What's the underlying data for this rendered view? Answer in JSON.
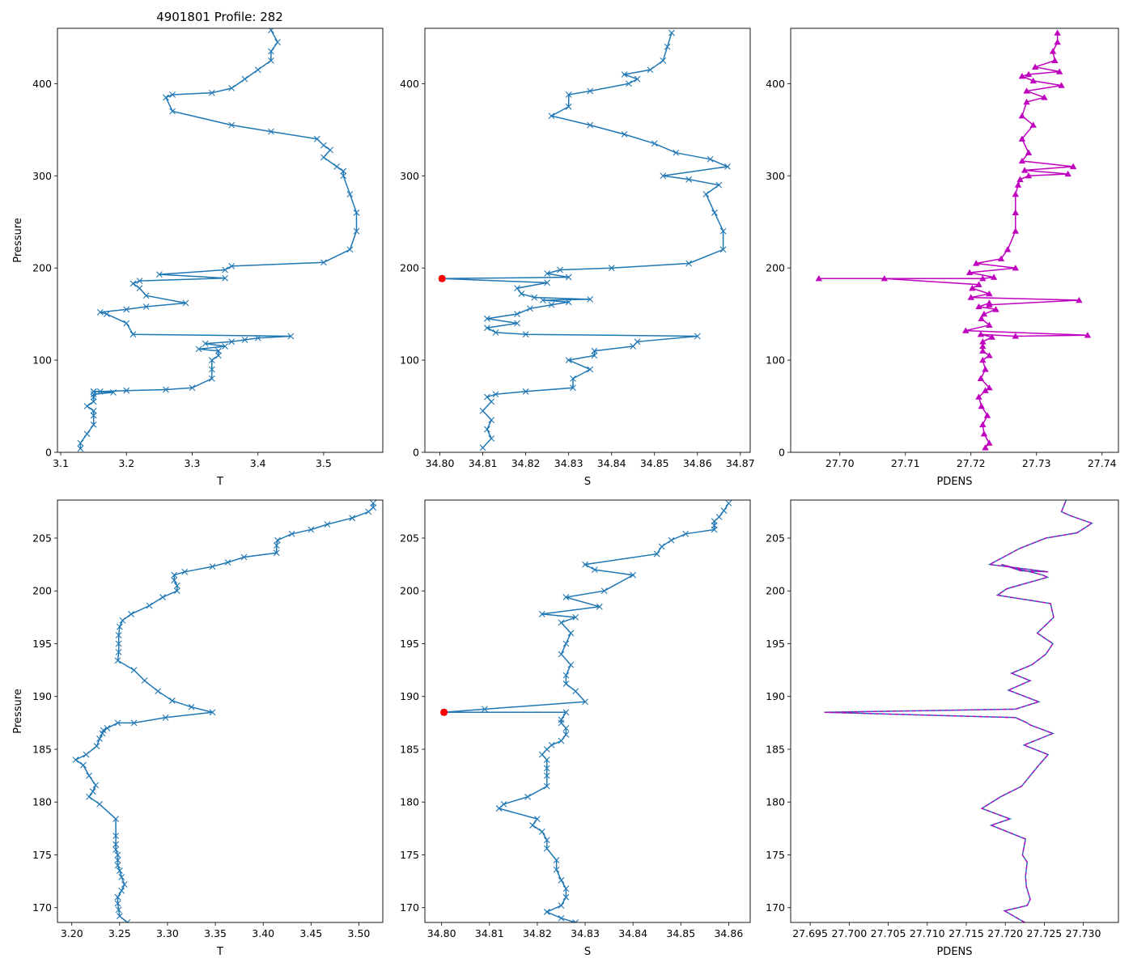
{
  "figure_title": "4901801 Profile: 282",
  "colors": {
    "line": "#1f77b4",
    "pdens": "#bf00bf",
    "flag": "#ff0000",
    "frame": "#000000"
  },
  "chart_data": [
    {
      "type": "line",
      "panel": "top-left",
      "title": "4901801 Profile: 282",
      "xlabel": "T",
      "ylabel": "Pressure",
      "marker": "x",
      "xlim": [
        3.095,
        3.59
      ],
      "ylim": [
        460,
        0
      ],
      "xticks": [
        3.1,
        3.2,
        3.3,
        3.4,
        3.5
      ],
      "xtick_labels": [
        "3.1",
        "3.2",
        "3.3",
        "3.4",
        "3.5"
      ],
      "yticks": [
        0,
        100,
        200,
        300,
        400
      ],
      "ytick_labels": [
        "0",
        "100",
        "200",
        "300",
        "400"
      ],
      "x": [
        3.13,
        3.13,
        3.14,
        3.15,
        3.15,
        3.15,
        3.14,
        3.15,
        3.15,
        3.15,
        3.18,
        3.15,
        3.15,
        3.16,
        3.2,
        3.26,
        3.3,
        3.33,
        3.33,
        3.33,
        3.34,
        3.34,
        3.31,
        3.35,
        3.32,
        3.36,
        3.38,
        3.4,
        3.45,
        3.21,
        3.2,
        3.17,
        3.16,
        3.2,
        3.23,
        3.29,
        3.23,
        3.22,
        3.21,
        3.22,
        3.35,
        3.25,
        3.35,
        3.36,
        3.5,
        3.54,
        3.55,
        3.55,
        3.54,
        3.53,
        3.53,
        3.52,
        3.5,
        3.51,
        3.5,
        3.49,
        3.42,
        3.36,
        3.27,
        3.26,
        3.27,
        3.33,
        3.36,
        3.38,
        3.4,
        3.42,
        3.42,
        3.43,
        3.42
      ],
      "y": [
        4,
        10,
        20,
        30,
        40,
        45,
        50,
        55,
        60,
        63,
        65,
        66,
        66,
        66,
        67,
        68,
        70,
        80,
        90,
        100,
        105,
        110,
        112,
        115,
        118,
        120,
        122,
        124,
        126,
        128,
        140,
        150,
        152,
        155,
        158,
        162,
        170,
        178,
        183,
        186,
        189,
        193,
        198,
        202,
        206,
        220,
        240,
        260,
        280,
        300,
        305,
        310,
        320,
        328,
        333,
        340,
        348,
        355,
        370,
        385,
        388,
        390,
        395,
        405,
        415,
        425,
        435,
        445,
        458
      ]
    },
    {
      "type": "line",
      "panel": "top-middle",
      "xlabel": "S",
      "marker": "x",
      "xlim": [
        34.7965,
        34.8723
      ],
      "ylim": [
        460,
        0
      ],
      "xticks": [
        34.8,
        34.81,
        34.82,
        34.83,
        34.84,
        34.85,
        34.86,
        34.87
      ],
      "xtick_labels": [
        "34.80",
        "34.81",
        "34.82",
        "34.83",
        "34.84",
        "34.85",
        "34.86",
        "34.87"
      ],
      "yticks": [
        0,
        100,
        200,
        300,
        400
      ],
      "ytick_labels": [
        "0",
        "100",
        "200",
        "300",
        "400"
      ],
      "x": [
        34.81,
        34.812,
        34.811,
        34.812,
        34.81,
        34.812,
        34.811,
        34.813,
        34.82,
        34.831,
        34.831,
        34.835,
        34.83,
        34.836,
        34.836,
        34.845,
        34.846,
        34.86,
        34.82,
        34.813,
        34.811,
        34.818,
        34.811,
        34.818,
        34.821,
        34.826,
        34.83,
        34.824,
        34.835,
        34.822,
        34.819,
        34.818,
        34.825,
        34.8005,
        34.83,
        34.825,
        34.828,
        34.84,
        34.858,
        34.866,
        34.866,
        34.864,
        34.862,
        34.865,
        34.858,
        34.852,
        34.867,
        34.863,
        34.855,
        34.85,
        34.843,
        34.835,
        34.826,
        34.83,
        34.83,
        34.835,
        34.844,
        34.846,
        34.843,
        34.849,
        34.852,
        34.853,
        34.854
      ],
      "y": [
        5,
        15,
        25,
        35,
        45,
        55,
        60,
        63,
        66,
        70,
        80,
        90,
        100,
        105,
        110,
        115,
        120,
        126,
        128,
        130,
        135,
        140,
        145,
        150,
        156,
        160,
        163,
        165,
        166,
        168,
        172,
        178,
        184,
        188.5,
        190,
        194,
        198,
        200,
        205,
        220,
        240,
        260,
        280,
        290,
        296,
        300,
        310,
        318,
        325,
        335,
        345,
        355,
        365,
        375,
        388,
        392,
        400,
        405,
        410,
        415,
        425,
        440,
        455
      ],
      "flag_point": {
        "x": 34.8005,
        "y": 188.5
      }
    },
    {
      "type": "line",
      "panel": "top-right",
      "xlabel": "PDENS",
      "marker": "^",
      "xlim": [
        27.6925,
        27.7425
      ],
      "ylim": [
        460,
        0
      ],
      "xticks": [
        27.7,
        27.71,
        27.72,
        27.73,
        27.74
      ],
      "xtick_labels": [
        "27.70",
        "27.71",
        "27.72",
        "27.73",
        "27.74"
      ],
      "yticks": [
        0,
        100,
        200,
        300,
        400
      ],
      "ytick_labels": [
        "0",
        "100",
        "200",
        "300",
        "400"
      ],
      "x": [
        27.7222,
        27.7228,
        27.722,
        27.7218,
        27.7225,
        27.7216,
        27.7212,
        27.7222,
        27.7228,
        27.7215,
        27.7222,
        27.7218,
        27.7228,
        27.7218,
        27.7218,
        27.7218,
        27.7232,
        27.7215,
        27.7268,
        27.7378,
        27.7192,
        27.7228,
        27.7216,
        27.722,
        27.7238,
        27.7212,
        27.7228,
        27.7228,
        27.7365,
        27.72,
        27.7228,
        27.7202,
        27.7212,
        27.7068,
        27.6968,
        27.7218,
        27.7235,
        27.7198,
        27.7268,
        27.7208,
        27.7246,
        27.7256,
        27.7268,
        27.7268,
        27.7268,
        27.7272,
        27.7275,
        27.7288,
        27.7348,
        27.7282,
        27.7356,
        27.7278,
        27.7288,
        27.7278,
        27.7295,
        27.7278,
        27.7285,
        27.7312,
        27.7285,
        27.7338,
        27.7295,
        27.7278,
        27.7288,
        27.7335,
        27.7298,
        27.7328,
        27.7325,
        27.7332,
        27.7332
      ],
      "y": [
        5,
        10,
        20,
        30,
        40,
        50,
        60,
        67,
        70,
        80,
        90,
        100,
        105,
        110,
        115,
        120,
        125,
        128,
        126,
        127,
        132,
        138,
        145,
        150,
        155,
        158,
        162,
        160,
        165,
        168,
        172,
        178,
        182,
        188.5,
        188.5,
        188.5,
        190,
        195,
        200,
        205,
        210,
        220,
        240,
        260,
        280,
        290,
        296,
        300,
        302,
        306,
        310,
        316,
        325,
        340,
        355,
        365,
        380,
        385,
        392,
        398,
        403,
        408,
        410,
        413,
        418,
        425,
        435,
        445,
        455
      ]
    },
    {
      "type": "line",
      "panel": "bottom-left",
      "xlabel": "T",
      "ylabel": "Pressure",
      "marker": "x",
      "xlim": [
        3.185,
        3.525
      ],
      "ylim": [
        208.6,
        168.6
      ],
      "xticks": [
        3.2,
        3.25,
        3.3,
        3.35,
        3.4,
        3.45,
        3.5
      ],
      "xtick_labels": [
        "3.20",
        "3.25",
        "3.30",
        "3.35",
        "3.40",
        "3.45",
        "3.50"
      ],
      "yticks": [
        170,
        175,
        180,
        185,
        190,
        195,
        200,
        205
      ],
      "ytick_labels": [
        "170",
        "175",
        "180",
        "185",
        "190",
        "195",
        "200",
        "205"
      ],
      "x": [
        3.258,
        3.25,
        3.249,
        3.248,
        3.248,
        3.252,
        3.255,
        3.252,
        3.25,
        3.248,
        3.248,
        3.248,
        3.246,
        3.246,
        3.246,
        3.246,
        3.229,
        3.218,
        3.222,
        3.225,
        3.218,
        3.212,
        3.204,
        3.215,
        3.226,
        3.229,
        3.232,
        3.233,
        3.237,
        3.248,
        3.265,
        3.298,
        3.347,
        3.325,
        3.305,
        3.29,
        3.276,
        3.265,
        3.248,
        3.249,
        3.249,
        3.249,
        3.25,
        3.253,
        3.262,
        3.281,
        3.295,
        3.31,
        3.31,
        3.307,
        3.307,
        3.318,
        3.347,
        3.363,
        3.38,
        3.414,
        3.414,
        3.415,
        3.43,
        3.45,
        3.467,
        3.493,
        3.51,
        3.515,
        3.515
      ],
      "y": [
        168.6,
        169.2,
        169.8,
        170.4,
        171,
        171.6,
        172.2,
        172.9,
        173.5,
        174,
        174.5,
        175,
        175.5,
        176,
        176.8,
        178.4,
        179.8,
        180.5,
        181,
        181.6,
        182.5,
        183.5,
        184,
        184.5,
        185.3,
        186,
        186.5,
        186.8,
        187,
        187.5,
        187.5,
        188,
        188.5,
        189,
        189.6,
        190.5,
        191.5,
        192.5,
        193.4,
        194.2,
        195,
        195.8,
        196.6,
        197.2,
        197.8,
        198.6,
        199.4,
        200,
        200.5,
        201,
        201.5,
        201.8,
        202.3,
        202.7,
        203.2,
        203.6,
        204.3,
        204.8,
        205.4,
        205.8,
        206.3,
        206.9,
        207.5,
        207.9,
        208.3
      ]
    },
    {
      "type": "line",
      "panel": "bottom-middle",
      "xlabel": "S",
      "marker": "x",
      "xlim": [
        34.7965,
        34.8645
      ],
      "ylim": [
        208.6,
        168.6
      ],
      "xticks": [
        34.8,
        34.81,
        34.82,
        34.83,
        34.84,
        34.85,
        34.86
      ],
      "xtick_labels": [
        "34.80",
        "34.81",
        "34.82",
        "34.83",
        "34.84",
        "34.85",
        "34.86"
      ],
      "yticks": [
        170,
        175,
        180,
        185,
        190,
        195,
        200,
        205
      ],
      "ytick_labels": [
        "170",
        "175",
        "180",
        "185",
        "190",
        "195",
        "200",
        "205"
      ],
      "x": [
        34.828,
        34.825,
        34.822,
        34.825,
        34.826,
        34.826,
        34.825,
        34.824,
        34.824,
        34.822,
        34.822,
        34.821,
        34.819,
        34.82,
        34.812,
        34.813,
        34.818,
        34.822,
        34.822,
        34.822,
        34.822,
        34.821,
        34.822,
        34.823,
        34.825,
        34.826,
        34.826,
        34.825,
        34.825,
        34.826,
        34.8005,
        34.809,
        34.83,
        34.828,
        34.826,
        34.826,
        34.827,
        34.825,
        34.826,
        34.827,
        34.825,
        34.828,
        34.821,
        34.833,
        34.826,
        34.834,
        34.84,
        34.832,
        34.83,
        34.845,
        34.846,
        34.848,
        34.851,
        34.857,
        34.857,
        34.857,
        34.858,
        34.859,
        34.86
      ],
      "y": [
        168.6,
        169,
        169.6,
        170.2,
        171,
        171.8,
        172.6,
        173.6,
        174.5,
        175.6,
        176.4,
        177.2,
        177.8,
        178.4,
        179.4,
        179.8,
        180.5,
        181.5,
        182.5,
        183.2,
        184,
        184.5,
        185,
        185.4,
        185.8,
        186.4,
        187,
        187.5,
        187.8,
        188.5,
        188.5,
        188.8,
        189.5,
        190.5,
        191.2,
        192,
        193,
        194,
        195,
        196,
        197,
        197.5,
        197.8,
        198.5,
        199.4,
        200,
        201.5,
        202,
        202.5,
        203.5,
        204.2,
        204.8,
        205.4,
        205.8,
        206.2,
        206.6,
        207,
        207.6,
        208.3
      ],
      "flag_point": {
        "x": 34.8005,
        "y": 188.5
      }
    },
    {
      "type": "line",
      "panel": "bottom-right",
      "xlabel": "PDENS",
      "marker": "none",
      "style": "solid line overlaid with dashed line",
      "xlim": [
        27.6925,
        27.7345
      ],
      "ylim": [
        208.6,
        168.6
      ],
      "xticks": [
        27.695,
        27.7,
        27.705,
        27.71,
        27.715,
        27.72,
        27.725,
        27.73
      ],
      "xtick_labels": [
        "27.695",
        "27.700",
        "27.705",
        "27.710",
        "27.715",
        "27.720",
        "27.725",
        "27.730"
      ],
      "yticks": [
        170,
        175,
        180,
        185,
        190,
        195,
        200,
        205
      ],
      "ytick_labels": [
        "170",
        "175",
        "180",
        "185",
        "190",
        "195",
        "200",
        "205"
      ],
      "x": [
        27.7225,
        27.7199,
        27.7228,
        27.7232,
        27.7227,
        27.7226,
        27.7228,
        27.7222,
        27.7226,
        27.7182,
        27.7206,
        27.717,
        27.7194,
        27.7221,
        27.7243,
        27.7255,
        27.7224,
        27.7261,
        27.7232,
        27.7228,
        27.7213,
        27.6968,
        27.7213,
        27.7243,
        27.7204,
        27.7232,
        27.7208,
        27.7234,
        27.7252,
        27.7261,
        27.7241,
        27.7262,
        27.7258,
        27.719,
        27.7202,
        27.7254,
        27.7248,
        27.7195,
        27.722,
        27.7255,
        27.718,
        27.7218,
        27.7252,
        27.7292,
        27.7311,
        27.7284,
        27.7272,
        27.7278
      ],
      "y": [
        168.6,
        169.7,
        170.2,
        170.8,
        172,
        173,
        174.3,
        175,
        176.5,
        177.8,
        178.4,
        179.4,
        180.5,
        181.5,
        183.5,
        184.5,
        185.4,
        186.5,
        187.3,
        187.5,
        188,
        188.5,
        188.8,
        189.5,
        190.6,
        191.5,
        192.2,
        193,
        194,
        195,
        196,
        197.5,
        198.8,
        199.6,
        200.2,
        201.3,
        201.5,
        202.5,
        201.9,
        201.8,
        202.5,
        204,
        205,
        205.5,
        206.4,
        207.1,
        207.5,
        208.6
      ]
    }
  ]
}
